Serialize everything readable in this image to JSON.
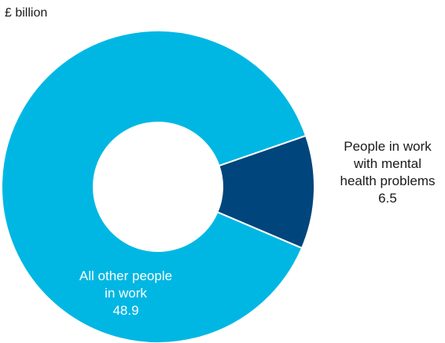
{
  "chart_data": {
    "type": "pie",
    "variant": "donut",
    "unit_label": "£ billion",
    "slices": [
      {
        "label_lines": [
          "People in work",
          "with mental",
          "health problems"
        ],
        "value": 6.5,
        "value_text": "6.5",
        "color": "#00457c"
      },
      {
        "label_lines": [
          "All other people",
          "in work"
        ],
        "value": 48.9,
        "value_text": "48.9",
        "color": "#00b7e3"
      }
    ],
    "legend": "none"
  }
}
